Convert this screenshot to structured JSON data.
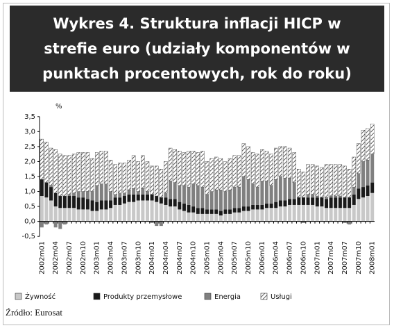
{
  "chart_data": {
    "type": "stacked_bar",
    "title": "Wykres 4. Struktura inflacji HICP w strefie euro (udziały komponentów w punktach procentowych, rok do roku)",
    "y_unit": "%",
    "source": "Źródło: Eurosat",
    "categories": [
      "2002m01",
      null,
      null,
      "2002m04",
      null,
      null,
      "2002m07",
      null,
      null,
      "2002m10",
      null,
      null,
      "2003m01",
      null,
      null,
      "2003m04",
      null,
      null,
      "2003m07",
      null,
      null,
      "2003m10",
      null,
      null,
      "2004m01",
      null,
      null,
      "2004m04",
      null,
      null,
      "2004m07",
      null,
      null,
      "2004m10",
      null,
      null,
      "2005m01",
      null,
      null,
      "2005m04",
      null,
      null,
      "2005m07",
      null,
      null,
      "2005m10",
      null,
      null,
      "2006m01",
      null,
      null,
      "2006m04",
      null,
      null,
      "2006m07",
      null,
      null,
      "2006m10",
      null,
      null,
      "2007m01",
      null,
      null,
      "2007m04",
      null,
      null,
      "2007m07",
      null,
      null,
      "2007m10",
      null,
      null,
      "2008m01"
    ],
    "series": [
      {
        "name": "Żywność",
        "color": "#c8c8c8",
        "values": [
          0.85,
          0.8,
          0.7,
          0.5,
          0.45,
          0.45,
          0.45,
          0.45,
          0.4,
          0.4,
          0.4,
          0.35,
          0.35,
          0.4,
          0.4,
          0.45,
          0.55,
          0.55,
          0.6,
          0.65,
          0.65,
          0.7,
          0.7,
          0.7,
          0.7,
          0.65,
          0.6,
          0.55,
          0.5,
          0.5,
          0.4,
          0.35,
          0.3,
          0.3,
          0.25,
          0.25,
          0.25,
          0.25,
          0.25,
          0.2,
          0.25,
          0.25,
          0.3,
          0.3,
          0.35,
          0.35,
          0.4,
          0.4,
          0.4,
          0.45,
          0.45,
          0.45,
          0.5,
          0.5,
          0.55,
          0.55,
          0.55,
          0.55,
          0.55,
          0.55,
          0.5,
          0.5,
          0.45,
          0.45,
          0.45,
          0.45,
          0.45,
          0.45,
          0.55,
          0.75,
          0.8,
          0.85,
          0.95
        ]
      },
      {
        "name": "Produkty przemysłowe",
        "color": "#1a1a1a",
        "values": [
          0.55,
          0.5,
          0.45,
          0.45,
          0.4,
          0.4,
          0.4,
          0.4,
          0.4,
          0.4,
          0.35,
          0.35,
          0.3,
          0.3,
          0.3,
          0.25,
          0.25,
          0.25,
          0.25,
          0.25,
          0.25,
          0.2,
          0.2,
          0.2,
          0.2,
          0.2,
          0.2,
          0.25,
          0.25,
          0.25,
          0.25,
          0.25,
          0.25,
          0.2,
          0.2,
          0.2,
          0.15,
          0.15,
          0.15,
          0.15,
          0.15,
          0.15,
          0.15,
          0.15,
          0.15,
          0.15,
          0.15,
          0.15,
          0.15,
          0.15,
          0.15,
          0.2,
          0.2,
          0.2,
          0.2,
          0.2,
          0.25,
          0.25,
          0.25,
          0.25,
          0.3,
          0.3,
          0.3,
          0.35,
          0.35,
          0.35,
          0.35,
          0.35,
          0.35,
          0.35,
          0.35,
          0.35,
          0.35
        ]
      },
      {
        "name": "Energia",
        "color": "#808080",
        "values": [
          -0.2,
          -0.1,
          0.05,
          -0.2,
          -0.25,
          -0.1,
          0.05,
          0.1,
          0.2,
          0.2,
          0.25,
          0.3,
          0.55,
          0.55,
          0.55,
          0.3,
          0.1,
          0.15,
          0.1,
          0.15,
          0.2,
          0.1,
          0.2,
          0.1,
          -0.05,
          -0.15,
          -0.15,
          0.15,
          0.6,
          0.55,
          0.55,
          0.6,
          0.6,
          0.75,
          0.75,
          0.7,
          0.5,
          0.6,
          0.65,
          0.7,
          0.6,
          0.65,
          0.7,
          0.7,
          1.0,
          0.9,
          0.7,
          0.6,
          0.8,
          0.75,
          0.6,
          0.75,
          0.8,
          0.75,
          0.7,
          0.55,
          0.0,
          -0.05,
          0.1,
          0.1,
          0.05,
          0.0,
          0.05,
          0.05,
          0.05,
          0.05,
          -0.05,
          -0.1,
          0.25,
          0.5,
          0.85,
          0.85,
          0.95
        ]
      },
      {
        "name": "Usługi",
        "color": "#333333",
        "pattern": "hatch",
        "values": [
          1.35,
          1.35,
          1.25,
          1.45,
          1.4,
          1.35,
          1.3,
          1.3,
          1.3,
          1.3,
          1.3,
          1.1,
          1.1,
          1.1,
          1.1,
          1.05,
          1.0,
          1.0,
          1.0,
          1.0,
          1.1,
          1.0,
          1.1,
          1.0,
          0.95,
          1.0,
          0.95,
          1.05,
          1.1,
          1.1,
          1.15,
          1.1,
          1.2,
          1.1,
          1.1,
          1.2,
          1.1,
          1.1,
          1.1,
          1.05,
          1.0,
          1.05,
          1.05,
          1.05,
          1.1,
          1.1,
          1.05,
          1.1,
          1.05,
          1.0,
          1.05,
          1.05,
          1.0,
          1.05,
          1.0,
          1.0,
          0.95,
          0.85,
          1.0,
          1.0,
          1.0,
          1.0,
          1.1,
          1.05,
          1.05,
          1.05,
          1.05,
          0.95,
          1.0,
          1.0,
          1.05,
          1.05,
          1.0
        ]
      }
    ],
    "ylim": [
      -0.5,
      3.5
    ],
    "yticks": [
      {
        "value": -0.5,
        "label": "-0,5"
      },
      {
        "value": 0,
        "label": "0,0"
      },
      {
        "value": 0.5,
        "label": "0,5"
      },
      {
        "value": 1,
        "label": "1,0"
      },
      {
        "value": 1.5,
        "label": "1,5"
      },
      {
        "value": 2,
        "label": "2,0"
      },
      {
        "value": 2.5,
        "label": "2,5"
      },
      {
        "value": 3,
        "label": "3,0"
      },
      {
        "value": 3.5,
        "label": "3,5"
      }
    ],
    "grid": false,
    "legend": "bottom"
  }
}
